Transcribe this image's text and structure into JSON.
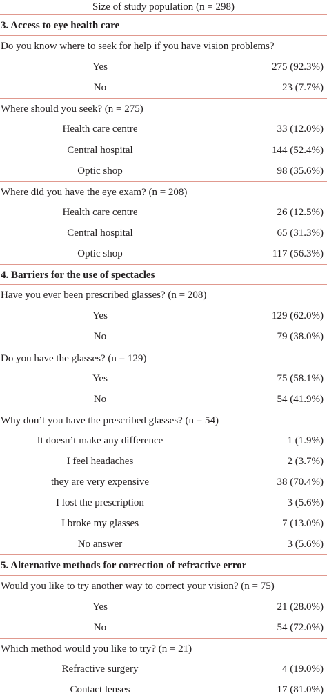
{
  "header": "Size of study population (n = 298)",
  "rows": [
    {
      "kind": "section",
      "text": "3. Access to eye health care"
    },
    {
      "kind": "question",
      "text": "Do you know where to seek for help if you have vision problems?"
    },
    {
      "kind": "answer",
      "label": "Yes",
      "value": "275 (92.3%)"
    },
    {
      "kind": "answer",
      "label": "No",
      "value": "23 (7.7%)"
    },
    {
      "kind": "question",
      "text": "Where should you seek? (n = 275)"
    },
    {
      "kind": "answer",
      "label": "Health care centre",
      "value": "33 (12.0%)"
    },
    {
      "kind": "answer",
      "label": "Central hospital",
      "value": "144 (52.4%)"
    },
    {
      "kind": "answer",
      "label": "Optic shop",
      "value": "98 (35.6%)"
    },
    {
      "kind": "question",
      "text": "Where did you have the eye exam? (n = 208)"
    },
    {
      "kind": "answer",
      "label": "Health care centre",
      "value": "26 (12.5%)"
    },
    {
      "kind": "answer",
      "label": "Central hospital",
      "value": "65 (31.3%)"
    },
    {
      "kind": "answer",
      "label": "Optic shop",
      "value": "117 (56.3%)"
    },
    {
      "kind": "section",
      "text": "4. Barriers for the use of spectacles"
    },
    {
      "kind": "question",
      "text": "Have you ever been prescribed glasses? (n = 208)"
    },
    {
      "kind": "answer",
      "label": "Yes",
      "value": "129 (62.0%)"
    },
    {
      "kind": "answer",
      "label": "No",
      "value": "79 (38.0%)"
    },
    {
      "kind": "question",
      "text": "Do you have the glasses? (n = 129)"
    },
    {
      "kind": "answer",
      "label": "Yes",
      "value": "75 (58.1%)"
    },
    {
      "kind": "answer",
      "label": "No",
      "value": "54 (41.9%)"
    },
    {
      "kind": "question",
      "text": "Why don’t you have the prescribed glasses? (n = 54)"
    },
    {
      "kind": "answer",
      "label": "It doesn’t make any difference",
      "value": "1 (1.9%)"
    },
    {
      "kind": "answer",
      "label": "I feel headaches",
      "value": "2 (3.7%)"
    },
    {
      "kind": "answer",
      "label": "they are very expensive",
      "value": "38 (70.4%)"
    },
    {
      "kind": "answer",
      "label": "I lost the prescription",
      "value": "3 (5.6%)"
    },
    {
      "kind": "answer",
      "label": "I broke my glasses",
      "value": "7 (13.0%)"
    },
    {
      "kind": "answer",
      "label": "No answer",
      "value": "3 (5.6%)"
    },
    {
      "kind": "section",
      "text": "5. Alternative methods for correction of refractive error"
    },
    {
      "kind": "question",
      "text": "Would you like to try another way to correct your vision? (n = 75)"
    },
    {
      "kind": "answer",
      "label": "Yes",
      "value": "21 (28.0%)"
    },
    {
      "kind": "answer",
      "label": "No",
      "value": "54 (72.0%)"
    },
    {
      "kind": "question",
      "text": "Which method would you like to try? (n = 21)"
    },
    {
      "kind": "answer",
      "label": "Refractive surgery",
      "value": "4 (19.0%)"
    },
    {
      "kind": "answer",
      "label": "Contact lenses",
      "value": "17 (81.0%)"
    }
  ]
}
